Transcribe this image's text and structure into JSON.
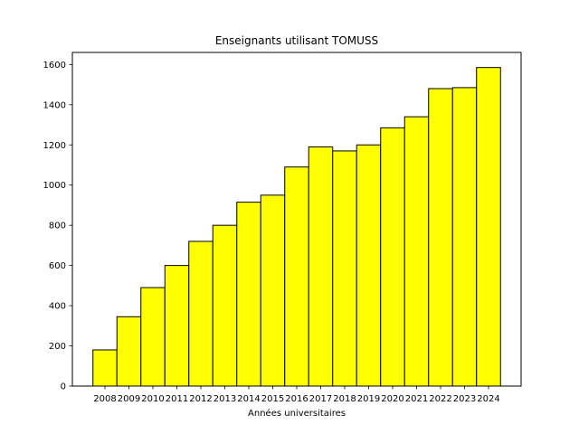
{
  "chart_data": {
    "type": "bar",
    "title": "Enseignants utilisant TOMUSS",
    "xlabel": "Années universitaires",
    "ylabel": "",
    "categories": [
      "2008",
      "2009",
      "2010",
      "2011",
      "2012",
      "2013",
      "2014",
      "2015",
      "2016",
      "2017",
      "2018",
      "2019",
      "2020",
      "2021",
      "2022",
      "2023",
      "2024"
    ],
    "values": [
      180,
      345,
      490,
      600,
      720,
      800,
      915,
      950,
      1090,
      1190,
      1170,
      1200,
      1285,
      1340,
      1480,
      1485,
      1585
    ],
    "ylim": [
      0,
      1660
    ],
    "yticks": [
      0,
      200,
      400,
      600,
      800,
      1000,
      1200,
      1400,
      1600
    ],
    "bar_color": "#ffff00",
    "edge_color": "#000000",
    "grid": false
  }
}
